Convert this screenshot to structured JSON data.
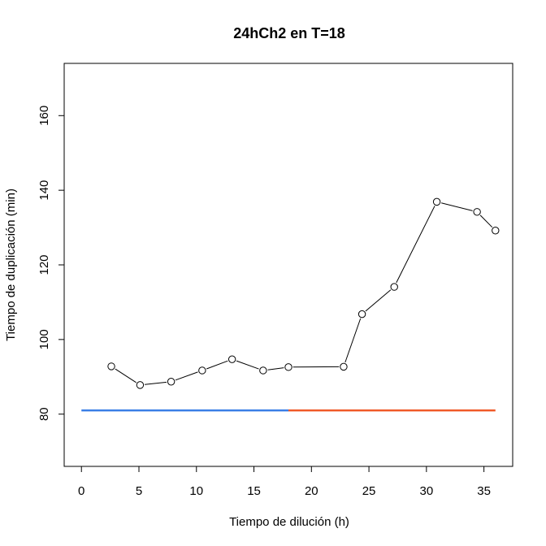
{
  "chart_data": {
    "type": "line",
    "title": "24hCh2 en T=18",
    "xlabel": "Tiempo de dilución (h)",
    "ylabel": "Tiempo de duplicación (min)",
    "xlim": [
      -1.5,
      37.5
    ],
    "ylim": [
      66,
      174
    ],
    "xticks": [
      0,
      5,
      10,
      15,
      20,
      25,
      30,
      35
    ],
    "yticks": [
      80,
      100,
      120,
      140,
      160
    ],
    "series": [
      {
        "marker": "open-circle",
        "color": "#000000",
        "x": [
          2.6,
          5.1,
          7.8,
          10.5,
          13.1,
          15.8,
          18.0,
          22.8,
          24.4,
          27.2,
          30.9,
          34.4,
          36.0
        ],
        "y": [
          92.8,
          87.8,
          88.7,
          91.7,
          94.7,
          91.7,
          92.6,
          92.7,
          106.8,
          114.1,
          136.9,
          134.2,
          129.2
        ]
      }
    ],
    "reference_lines": [
      {
        "x": [
          0,
          18
        ],
        "y": 81,
        "color": "#3a7fe6"
      },
      {
        "x": [
          18,
          36
        ],
        "y": 81,
        "color": "#f05a28"
      }
    ],
    "grid": false,
    "legend": "none"
  }
}
